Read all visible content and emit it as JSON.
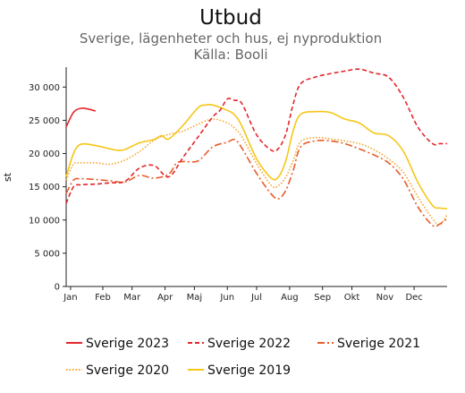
{
  "chart_data": {
    "type": "line",
    "title": "Utbud",
    "subtitle": "Sverige, lägenheter och hus, ej nyproduktion",
    "source": "Källa: Booli",
    "ylabel": "st",
    "xlabel": "",
    "ylim": [
      0,
      33000
    ],
    "yticks": [
      0,
      5000,
      10000,
      15000,
      20000,
      25000,
      30000
    ],
    "ytick_labels": [
      "0",
      "5 000",
      "10 000",
      "15 000",
      "20 000",
      "25 000",
      "30 000"
    ],
    "xlim": [
      0,
      52
    ],
    "xticks": [
      {
        "label": "Jan",
        "week": 0.6
      },
      {
        "label": "Feb",
        "week": 5
      },
      {
        "label": "Mar",
        "week": 9
      },
      {
        "label": "Apr",
        "week": 13.5
      },
      {
        "label": "Maj",
        "week": 17.5
      },
      {
        "label": "Jun",
        "week": 22
      },
      {
        "label": "Jul",
        "week": 26
      },
      {
        "label": "Aug",
        "week": 30.5
      },
      {
        "label": "Sep",
        "week": 35
      },
      {
        "label": "Okt",
        "week": 39
      },
      {
        "label": "Nov",
        "week": 43.5
      },
      {
        "label": "Dec",
        "week": 47.5
      }
    ],
    "grid": false,
    "legend_position": "bottom",
    "series": [
      {
        "name": "Sverige 2023",
        "color": "#e3262b",
        "dash": "solid",
        "x": [
          0,
          1,
          2,
          3,
          4
        ],
        "values": [
          24000,
          26200,
          26800,
          26700,
          26400
        ]
      },
      {
        "name": "Sverige 2022",
        "color": "#e3262b",
        "dash": "dashed",
        "x": [
          0,
          1,
          2,
          4,
          6,
          8,
          10,
          12,
          14,
          16,
          18,
          20,
          21,
          22,
          23,
          24,
          26,
          28,
          29,
          30,
          31,
          32,
          34,
          36,
          38,
          40,
          42,
          44,
          46,
          48,
          50,
          51,
          52
        ],
        "values": [
          12500,
          15000,
          15300,
          15400,
          15600,
          15800,
          17800,
          18200,
          16500,
          19500,
          22500,
          25500,
          26500,
          28200,
          28000,
          27500,
          22800,
          20500,
          20800,
          23000,
          27500,
          30500,
          31500,
          32000,
          32400,
          32700,
          32100,
          31500,
          28500,
          24000,
          21500,
          21500,
          21500
        ]
      },
      {
        "name": "Sverige 2021",
        "color": "#e85c2a",
        "dash": "dashdot",
        "x": [
          0,
          1,
          2,
          4,
          6,
          8,
          10,
          12,
          14,
          15,
          16,
          18,
          20,
          22,
          23,
          24,
          26,
          28,
          29,
          30,
          31,
          32,
          34,
          36,
          38,
          40,
          42,
          44,
          46,
          48,
          50,
          51,
          52
        ],
        "values": [
          14000,
          16000,
          16200,
          16100,
          15900,
          15700,
          16700,
          16300,
          16900,
          18500,
          18800,
          18900,
          21000,
          21700,
          22100,
          20800,
          17000,
          13900,
          13200,
          14500,
          17500,
          21000,
          21900,
          21900,
          21500,
          20700,
          19800,
          18600,
          16200,
          12000,
          9200,
          9400,
          10200
        ]
      },
      {
        "name": "Sverige 2020",
        "color": "#f5a52b",
        "dash": "dotted",
        "x": [
          0,
          1,
          2,
          4,
          6,
          8,
          10,
          12,
          14,
          16,
          18,
          20,
          22,
          23,
          24,
          26,
          28,
          29,
          30,
          31,
          32,
          34,
          36,
          38,
          40,
          42,
          44,
          46,
          48,
          50,
          51,
          52
        ],
        "values": [
          16000,
          18400,
          18600,
          18600,
          18400,
          19000,
          20300,
          22000,
          22900,
          23400,
          24400,
          25200,
          24600,
          23800,
          22500,
          18500,
          15200,
          15200,
          16500,
          19000,
          21800,
          22400,
          22200,
          21900,
          21500,
          20600,
          19200,
          17200,
          13500,
          10200,
          9300,
          10800
        ]
      },
      {
        "name": "Sverige 2019",
        "color": "#f6c617",
        "dash": "solid",
        "x": [
          0,
          1,
          2,
          4,
          6,
          7,
          8,
          10,
          12,
          13,
          14,
          16,
          18,
          19,
          20,
          22,
          23,
          24,
          26,
          28,
          29,
          30,
          31,
          32,
          34,
          36,
          38,
          40,
          42,
          44,
          46,
          48,
          50,
          51,
          52
        ],
        "values": [
          16500,
          20000,
          21400,
          21200,
          20700,
          20500,
          20600,
          21600,
          22100,
          22700,
          22200,
          24300,
          26900,
          27300,
          27300,
          26500,
          25800,
          24100,
          19200,
          16300,
          16500,
          19000,
          23500,
          25900,
          26300,
          26200,
          25200,
          24600,
          23100,
          22700,
          20400,
          15700,
          12200,
          11800,
          11700
        ]
      }
    ]
  }
}
